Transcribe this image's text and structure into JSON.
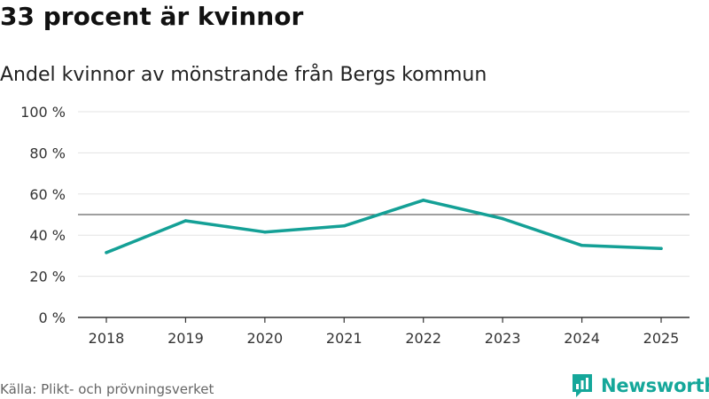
{
  "header": {
    "title": "33 procent är kvinnor",
    "subtitle": "Andel kvinnor av mönstrande från Bergs kommun"
  },
  "footer": {
    "source": "Källa: Plikt- och prövningsverket",
    "brand": "Newsworthy"
  },
  "colors": {
    "line": "#14a096",
    "brand": "#15a79a",
    "reference": "#666666",
    "grid": "#e3e3e3",
    "axis": "#333333"
  },
  "chart_data": {
    "type": "line",
    "title": "33 procent är kvinnor",
    "subtitle": "Andel kvinnor av mönstrande från Bergs kommun",
    "xlabel": "",
    "ylabel": "",
    "categories": [
      "2018",
      "2019",
      "2020",
      "2021",
      "2022",
      "2023",
      "2024",
      "2025"
    ],
    "series": [
      {
        "name": "Andel kvinnor",
        "values": [
          31.5,
          47,
          41.5,
          44.5,
          57,
          48,
          35,
          33.5
        ]
      }
    ],
    "ylim": [
      0,
      100
    ],
    "yticks": [
      0,
      20,
      40,
      60,
      80,
      100
    ],
    "ytick_labels": [
      "0 %",
      "20 %",
      "40 %",
      "60 %",
      "80 %",
      "100 %"
    ],
    "reference_line": 50,
    "grid": true,
    "legend": "none"
  }
}
